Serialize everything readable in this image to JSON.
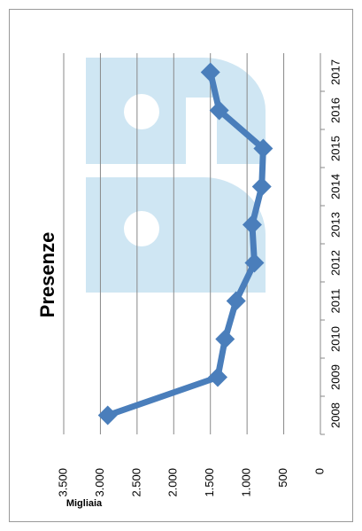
{
  "chart_data": {
    "type": "line",
    "title": "Presenze",
    "y_label": "Migliaia",
    "categories": [
      "2008",
      "2009",
      "2010",
      "2011",
      "2012",
      "2013",
      "2014",
      "2015",
      "2016",
      "2017"
    ],
    "series": [
      {
        "name": "Presenze",
        "color": "#4a7ebb",
        "values": [
          2900,
          1400,
          1300,
          1150,
          900,
          930,
          800,
          780,
          1380,
          1500
        ]
      }
    ],
    "ylim": [
      0,
      3500
    ],
    "yticks": [
      0,
      500,
      {
        "value": 1000,
        "label": "1.000"
      },
      {
        "value": 1500,
        "label": "1.500"
      },
      {
        "value": 2000,
        "label": "2.000"
      },
      {
        "value": 2500,
        "label": "2.500"
      },
      {
        "value": 3000,
        "label": "3.000"
      },
      {
        "value": 3500,
        "label": "3.500"
      }
    ],
    "grid": true
  }
}
